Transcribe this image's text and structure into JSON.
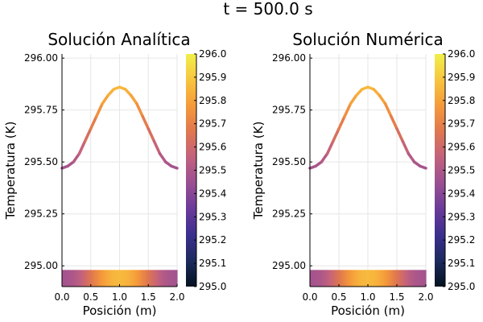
{
  "figure": {
    "suptitle": "t = 500.0 s"
  },
  "colorbar": {
    "range": [
      295.0,
      296.0
    ],
    "ticks": [
      "295.0",
      "295.1",
      "295.2",
      "295.3",
      "295.4",
      "295.5",
      "295.6",
      "295.7",
      "295.8",
      "295.9",
      "296.0"
    ]
  },
  "chart_data": [
    {
      "type": "line",
      "title": "Solución Analítica",
      "xlabel": "Posición (m)",
      "ylabel": "Temperatura (K)",
      "xlim": [
        0.0,
        2.0
      ],
      "ylim": [
        294.9,
        296.02
      ],
      "xticks": [
        "0.0",
        "0.5",
        "1.0",
        "1.5",
        "2.0"
      ],
      "yticks": [
        "295.00",
        "295.25",
        "295.50",
        "295.75",
        "296.00"
      ],
      "x": [
        0.0,
        0.1,
        0.2,
        0.3,
        0.4,
        0.5,
        0.6,
        0.7,
        0.8,
        0.9,
        1.0,
        1.1,
        1.2,
        1.3,
        1.4,
        1.5,
        1.6,
        1.7,
        1.8,
        1.9,
        2.0
      ],
      "y": [
        295.47,
        295.48,
        295.5,
        295.54,
        295.6,
        295.66,
        295.72,
        295.78,
        295.82,
        295.85,
        295.86,
        295.85,
        295.82,
        295.78,
        295.72,
        295.66,
        295.6,
        295.54,
        295.5,
        295.48,
        295.47
      ],
      "heatmap_strip": {
        "ylim": [
          294.9,
          294.98
        ]
      },
      "grid": true,
      "colormap": "thermal"
    },
    {
      "type": "line",
      "title": "Solución Numérica",
      "xlabel": "Posición (m)",
      "ylabel": "Temperatura (K)",
      "xlim": [
        0.0,
        2.0
      ],
      "ylim": [
        294.9,
        296.02
      ],
      "xticks": [
        "0.0",
        "0.5",
        "1.0",
        "1.5",
        "2.0"
      ],
      "yticks": [
        "295.00",
        "295.25",
        "295.50",
        "295.75",
        "296.00"
      ],
      "x": [
        0.0,
        0.1,
        0.2,
        0.3,
        0.4,
        0.5,
        0.6,
        0.7,
        0.8,
        0.9,
        1.0,
        1.1,
        1.2,
        1.3,
        1.4,
        1.5,
        1.6,
        1.7,
        1.8,
        1.9,
        2.0
      ],
      "y": [
        295.47,
        295.48,
        295.5,
        295.54,
        295.6,
        295.66,
        295.72,
        295.78,
        295.82,
        295.85,
        295.86,
        295.85,
        295.82,
        295.78,
        295.72,
        295.66,
        295.6,
        295.54,
        295.5,
        295.48,
        295.47
      ],
      "heatmap_strip": {
        "ylim": [
          294.9,
          294.98
        ]
      },
      "grid": true,
      "colormap": "thermal"
    }
  ],
  "colors": {
    "axis": "#000000",
    "grid": "#e6e6e6",
    "thermal_stops": [
      "#04121f",
      "#1c2a5e",
      "#3b2f8f",
      "#6a3a9a",
      "#9a4f93",
      "#c2617e",
      "#e0774f",
      "#f59a3a",
      "#f8c53f",
      "#f0f04a"
    ]
  }
}
